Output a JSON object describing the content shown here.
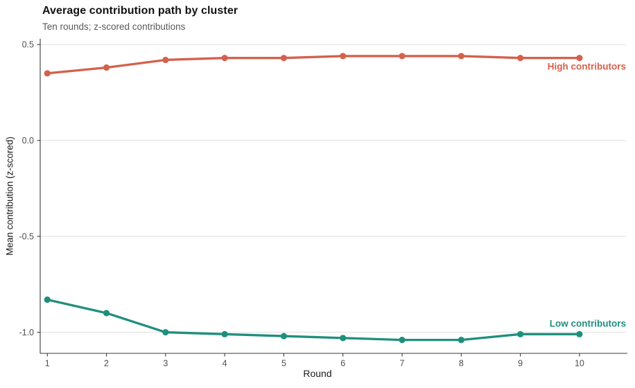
{
  "chart_data": {
    "type": "line",
    "title": "Average contribution path by cluster",
    "subtitle": "Ten rounds; z-scored contributions",
    "xlabel": "Round",
    "ylabel": "Mean contribution (z-scored)",
    "x": [
      1,
      2,
      3,
      4,
      5,
      6,
      7,
      8,
      9,
      10
    ],
    "xlim": [
      0.88,
      10.81
    ],
    "ylim": [
      -1.11,
      0.53
    ],
    "xticks": {
      "values": [
        1,
        2,
        3,
        4,
        5,
        6,
        7,
        8,
        9,
        10
      ],
      "labels": [
        "1",
        "2",
        "3",
        "4",
        "5",
        "6",
        "7",
        "8",
        "9",
        "10"
      ]
    },
    "yticks": {
      "values": [
        0.5,
        0.0,
        -0.5,
        -1.0
      ],
      "labels": [
        "0.5",
        "0.0",
        "-0.5",
        "-1.0"
      ]
    },
    "grid": "horizontal-major-only",
    "legend": "direct-series-labels-at-right",
    "series": [
      {
        "name": "High contributors",
        "color": "#D4614C",
        "label_side": "below-last-point",
        "values": [
          0.35,
          0.38,
          0.42,
          0.43,
          0.43,
          0.44,
          0.44,
          0.44,
          0.43,
          0.43
        ]
      },
      {
        "name": "Low contributors",
        "color": "#1F8F7D",
        "label_side": "above-last-point",
        "values": [
          -0.83,
          -0.9,
          -1.0,
          -1.01,
          -1.02,
          -1.03,
          -1.04,
          -1.04,
          -1.01,
          -1.01
        ]
      }
    ]
  },
  "style_colors": {
    "gridline": "#E9E9E9",
    "axis_line": "#3A3A3A",
    "tick_mark": "#3A3A3A",
    "tick_label": "#4D4D4D",
    "title_text": "#111111",
    "subtitle_text": "#595959",
    "background": "#FFFFFF"
  }
}
